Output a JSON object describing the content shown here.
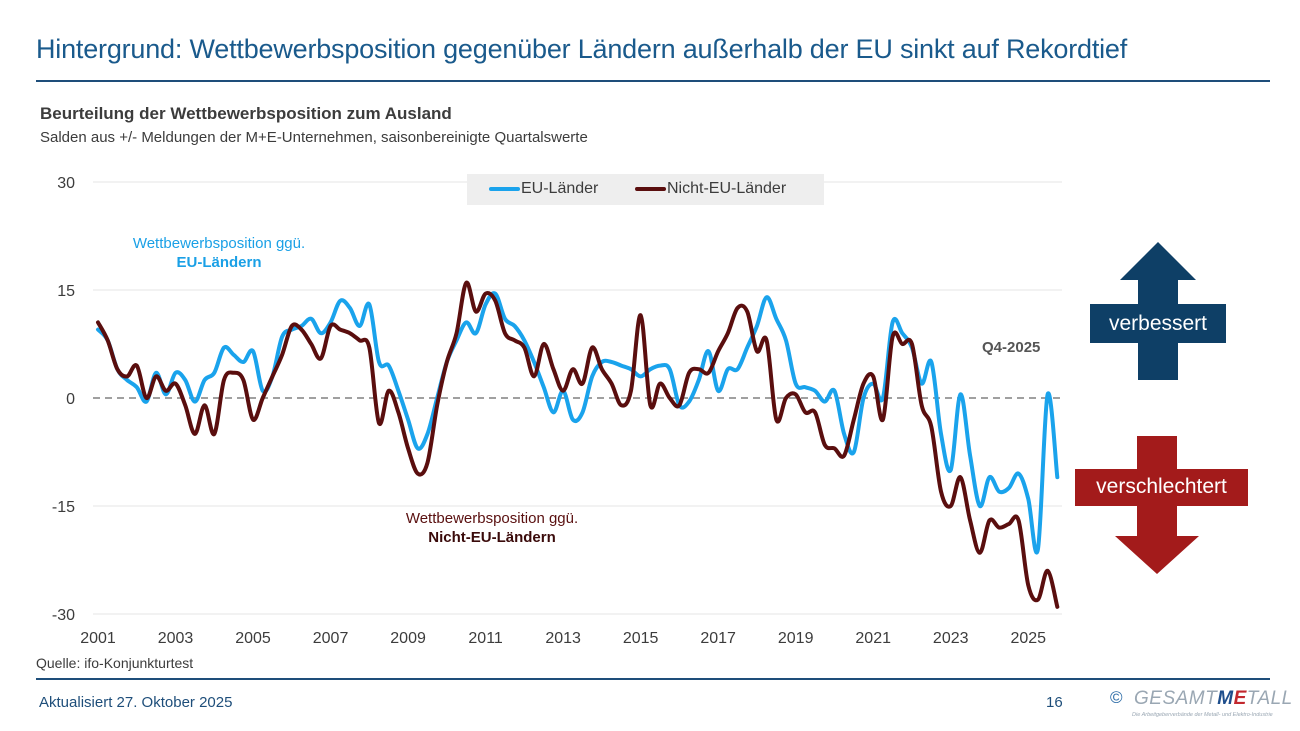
{
  "header": {
    "title": "Hintergrund: Wettbewerbsposition gegenüber Ländern außerhalb der EU sinkt auf Rekordtief"
  },
  "chart_header": {
    "title": "Beurteilung der Wettbewerbsposition zum Ausland",
    "subtitle": "Salden aus +/- Meldungen der M+E-Unternehmen, saisonbereinigte Quartalswerte"
  },
  "annotations": {
    "eu_line1": "Wettbewerbsposition ggü.",
    "eu_line2": "EU-Ländern",
    "neu_line1": "Wettbewerbsposition ggü.",
    "neu_line2": "Nicht-EU-Ländern",
    "latest": "Q4-2025"
  },
  "arrows": {
    "up_label": "verbessert",
    "up_color": "#0e3f66",
    "down_label": "verschlechtert",
    "down_color": "#a31b1b"
  },
  "footer": {
    "source": "Quelle: ifo-Konjunkturtest",
    "updated": "Aktualisiert 27. Oktober 2025",
    "page": "16",
    "logo_copyright": "©",
    "logo_text_a": "GESAMT",
    "logo_text_m": "M",
    "logo_text_e": "E",
    "logo_text_b": "TALL",
    "logo_tagline": "Die Arbeitgeberverbände der Metall- und Elektro-Industrie"
  },
  "chart_data": {
    "type": "line",
    "title": "Beurteilung der Wettbewerbsposition zum Ausland",
    "subtitle": "Salden aus +/- Meldungen der M+E-Unternehmen, saisonbereinigte Quartalswerte",
    "xlabel": "",
    "ylabel": "",
    "x_start": "2001-Q1",
    "x_end": "2025-Q4",
    "frequency": "quarterly",
    "x_tick_labels": [
      "2001",
      "2003",
      "2005",
      "2007",
      "2009",
      "2011",
      "2013",
      "2015",
      "2017",
      "2019",
      "2021",
      "2023",
      "2025"
    ],
    "y_ticks": [
      30,
      15,
      0,
      -15,
      -30
    ],
    "ylim": [
      -30,
      30
    ],
    "grid": true,
    "zero_line": "dashed",
    "legend_position": "top-center",
    "series": [
      {
        "name": "EU-Länder",
        "color": "#1aa3ec",
        "values": [
          9.5,
          8,
          4,
          2.5,
          1.5,
          -0.5,
          3.5,
          0.5,
          3.5,
          2.5,
          -0.5,
          2.5,
          3.5,
          7,
          6,
          5,
          6.5,
          1,
          3,
          8.5,
          9.5,
          10,
          11,
          9,
          10.5,
          13.5,
          12.5,
          10,
          13,
          5,
          4.5,
          1,
          -3,
          -7,
          -5,
          0,
          5,
          8,
          10.5,
          9,
          13,
          14.5,
          11,
          10,
          8,
          5,
          1.5,
          -2,
          1,
          -3,
          -2,
          3,
          5,
          5,
          4.5,
          4,
          3,
          4,
          4.5,
          4,
          -1,
          -0.5,
          2.5,
          6.5,
          1,
          4,
          4,
          7,
          10,
          14,
          11,
          8,
          2,
          1.5,
          1,
          -0.5,
          1,
          -5,
          -7.5,
          0,
          2,
          0,
          10.5,
          9,
          7,
          2,
          5,
          -5,
          -10,
          0.5,
          -8,
          -15,
          -11,
          -13,
          -12.5,
          -10.5,
          -14,
          -21,
          0.5,
          -11
        ]
      },
      {
        "name": "Nicht-EU-Länder",
        "color": "#5a0e0e",
        "values": [
          10.5,
          8,
          4,
          3,
          4.5,
          0,
          3,
          1,
          2,
          -1,
          -5,
          -1,
          -5,
          2.5,
          3.5,
          2.5,
          -3,
          0,
          3,
          6,
          10,
          9.5,
          7.5,
          5.5,
          10,
          9.5,
          9,
          8,
          7,
          -3.5,
          1,
          -2,
          -7,
          -10.5,
          -9,
          -1,
          5,
          9,
          16,
          12,
          14.5,
          13.5,
          9,
          8,
          7,
          3,
          7.5,
          4,
          1,
          4,
          2,
          7,
          4,
          2,
          -1,
          1,
          11.5,
          -1,
          2,
          0,
          -1,
          3.5,
          4,
          3.5,
          6.5,
          9,
          12.5,
          12,
          6.5,
          8,
          -3,
          0,
          0.5,
          -2,
          -2,
          -6.5,
          -7,
          -8,
          -3,
          2,
          3,
          -3,
          8.5,
          7.5,
          7.5,
          -1,
          -4,
          -13,
          -15,
          -11,
          -17,
          -21.5,
          -17,
          -18,
          -17.5,
          -17,
          -26,
          -28,
          -24,
          -29
        ]
      }
    ]
  }
}
